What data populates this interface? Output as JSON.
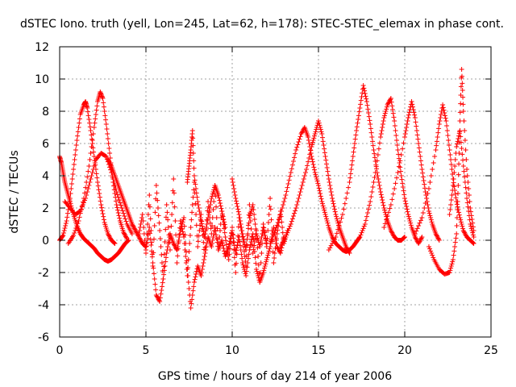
{
  "chart_data": {
    "type": "scatter",
    "title": "dSTEC Iono. truth (yell, Lon=245, Lat=62, h=178): STEC-STEC_elemax in phase cont.",
    "xlabel": "GPS time / hours of day 214 of year 2006",
    "ylabel": "dSTEC  / TECUs",
    "xlim": [
      0,
      25
    ],
    "ylim": [
      -6,
      12
    ],
    "x_ticks": [
      0,
      5,
      10,
      15,
      20,
      25
    ],
    "y_ticks": [
      -6,
      -4,
      -2,
      0,
      2,
      4,
      6,
      8,
      10,
      12
    ],
    "grid": true,
    "legend": "none",
    "marker": "plus",
    "color": "#ff0000",
    "series": [
      {
        "x": [
          0.0,
          0.1,
          0.2,
          0.3,
          0.45,
          0.6,
          0.8,
          1.0,
          1.2,
          1.4,
          1.6,
          1.8,
          2.0,
          2.2,
          2.4,
          2.6,
          2.8,
          3.0,
          3.2,
          3.4,
          3.6,
          3.8,
          4.0
        ],
        "y": [
          5.2,
          4.8,
          4.2,
          3.6,
          3.0,
          2.4,
          1.6,
          0.9,
          0.4,
          0.1,
          -0.1,
          -0.3,
          -0.5,
          -0.8,
          -1.0,
          -1.2,
          -1.3,
          -1.2,
          -1.0,
          -0.8,
          -0.5,
          -0.2,
          0.0
        ]
      },
      {
        "x": [
          0.0,
          0.2,
          0.4,
          0.6,
          0.8,
          1.0,
          1.2,
          1.4,
          1.5,
          1.6,
          1.8,
          2.0,
          2.2,
          2.4,
          2.6,
          2.8,
          3.0,
          3.2
        ],
        "y": [
          0.0,
          0.3,
          1.2,
          2.6,
          4.4,
          6.2,
          7.8,
          8.4,
          8.6,
          8.2,
          6.8,
          5.2,
          3.6,
          2.2,
          1.1,
          0.4,
          0.0,
          -0.2
        ]
      },
      {
        "x": [
          0.5,
          0.8,
          1.1,
          1.4,
          1.7,
          2.0,
          2.2,
          2.35,
          2.5,
          2.7,
          2.9,
          3.1,
          3.3,
          3.5,
          3.7,
          3.9
        ],
        "y": [
          -0.2,
          0.3,
          1.2,
          2.6,
          4.6,
          7.0,
          8.6,
          9.2,
          8.8,
          7.2,
          5.4,
          3.6,
          2.2,
          1.2,
          0.5,
          0.1
        ]
      },
      {
        "x": [
          0.3,
          0.6,
          0.9,
          1.2,
          1.5,
          1.8,
          2.1,
          2.4,
          2.7,
          3.0,
          3.3,
          3.6,
          3.9,
          4.2
        ],
        "y": [
          2.4,
          2.0,
          1.6,
          1.8,
          2.6,
          3.8,
          5.0,
          5.4,
          5.2,
          4.2,
          3.0,
          2.0,
          1.0,
          0.4
        ]
      },
      {
        "x": [
          2.8,
          3.0,
          3.2,
          3.4,
          3.6,
          3.8,
          4.0,
          4.2,
          4.4,
          4.6,
          4.8,
          5.0
        ],
        "y": [
          5.0,
          4.6,
          4.0,
          3.4,
          2.8,
          2.2,
          1.6,
          1.0,
          0.6,
          0.2,
          -0.2,
          -0.4
        ]
      },
      {
        "x": [
          4.6,
          4.8,
          5.0,
          5.2,
          5.4,
          5.6,
          5.8,
          6.0,
          6.2,
          6.4,
          6.6,
          6.8,
          7.0,
          7.2,
          7.4,
          7.6,
          7.8,
          8.0,
          8.2,
          8.4,
          8.6,
          8.8,
          9.0,
          9.2,
          9.4,
          9.6,
          9.8,
          10.0,
          10.2,
          10.4,
          10.6,
          10.8,
          11.0,
          11.2,
          11.4,
          11.6,
          11.8,
          12.0,
          12.2,
          12.4,
          12.6,
          12.8,
          13.0,
          13.2
        ],
        "y": [
          0.4,
          1.6,
          -0.8,
          2.8,
          -1.6,
          3.4,
          0.6,
          -2.4,
          2.2,
          -0.6,
          3.8,
          -1.4,
          1.2,
          0.2,
          -2.2,
          0.8,
          3.6,
          -0.4,
          1.6,
          -1.0,
          2.4,
          0.4,
          3.4,
          -0.6,
          1.8,
          0.2,
          -1.2,
          0.8,
          -2.0,
          1.4,
          0.2,
          -1.6,
          2.2,
          -0.8,
          0.6,
          -2.6,
          1.0,
          -0.4,
          2.6,
          -1.4,
          0.4,
          1.8,
          -0.2,
          0.6
        ]
      },
      {
        "x": [
          5.0,
          5.2,
          5.4,
          5.6,
          5.8,
          6.0,
          6.2,
          6.4,
          6.6,
          6.8,
          7.0,
          7.2,
          7.4,
          7.6,
          7.8,
          8.0,
          8.2,
          8.4,
          8.6,
          8.8,
          9.0,
          9.2,
          9.4,
          9.6,
          9.8,
          10.0,
          10.2,
          10.4,
          10.6,
          10.8,
          11.0,
          11.2,
          11.4,
          11.6,
          11.8,
          12.0,
          12.2,
          12.4,
          12.6,
          12.8,
          13.0
        ],
        "y": [
          -0.6,
          0.8,
          -1.4,
          -3.4,
          -3.8,
          -2.4,
          -0.8,
          0.4,
          -0.2,
          -0.6,
          0.6,
          1.4,
          -1.8,
          -4.2,
          -2.6,
          -1.6,
          -2.2,
          -1.0,
          0.2,
          -0.4,
          0.8,
          -0.6,
          0.0,
          -1.0,
          -0.4,
          0.6,
          -0.8,
          0.2,
          -1.4,
          -2.2,
          -0.6,
          0.4,
          -1.8,
          -2.6,
          -2.0,
          -1.2,
          -0.4,
          0.8,
          -0.4,
          -0.8,
          0.2
        ]
      },
      {
        "x": [
          7.4,
          7.5,
          7.6,
          7.7,
          7.8,
          8.0,
          8.2,
          8.4,
          8.6,
          8.8,
          9.0,
          9.2,
          9.4,
          9.6
        ],
        "y": [
          3.6,
          4.6,
          5.6,
          6.8,
          4.0,
          2.4,
          1.2,
          0.2,
          1.4,
          2.6,
          3.4,
          2.8,
          1.8,
          0.8
        ]
      },
      {
        "x": [
          10.0,
          10.2,
          10.4,
          10.6,
          10.8,
          11.0,
          11.2,
          11.4,
          11.6,
          11.8,
          12.0
        ],
        "y": [
          3.8,
          2.6,
          1.6,
          0.4,
          -0.6,
          1.4,
          2.2,
          0.4,
          -0.4,
          0.8,
          -0.2
        ]
      },
      {
        "x": [
          12.2,
          12.5,
          12.8,
          13.1,
          13.4,
          13.7,
          14.0,
          14.2,
          14.4,
          14.6,
          14.8,
          15.0,
          15.2,
          15.4,
          15.6,
          15.8,
          16.0,
          16.2,
          16.4,
          16.6,
          16.8,
          17.0,
          17.2,
          17.4
        ],
        "y": [
          -0.2,
          0.6,
          1.6,
          2.8,
          4.2,
          5.6,
          6.6,
          7.0,
          6.4,
          5.2,
          4.2,
          3.4,
          2.4,
          1.6,
          0.8,
          0.2,
          -0.2,
          -0.4,
          -0.6,
          -0.7,
          -0.6,
          -0.4,
          -0.1,
          0.2
        ]
      },
      {
        "x": [
          12.8,
          13.1,
          13.4,
          13.7,
          14.0,
          14.3,
          14.6,
          14.8,
          15.0,
          15.2,
          15.4,
          15.6,
          15.8,
          16.0,
          16.2,
          16.4,
          16.6,
          16.8
        ],
        "y": [
          -0.4,
          0.2,
          1.0,
          2.0,
          3.2,
          4.4,
          5.8,
          6.6,
          7.4,
          6.6,
          5.2,
          3.8,
          2.6,
          1.6,
          0.8,
          0.2,
          -0.4,
          -0.8
        ]
      },
      {
        "x": [
          15.6,
          16.0,
          16.4,
          16.8,
          17.0,
          17.2,
          17.4,
          17.6,
          17.8,
          18.0,
          18.2,
          18.4,
          18.6,
          18.8,
          19.0,
          19.2,
          19.4,
          19.6,
          19.8,
          20.0
        ],
        "y": [
          -0.6,
          0.2,
          1.6,
          3.6,
          5.2,
          6.8,
          8.2,
          9.6,
          8.6,
          7.2,
          5.6,
          4.2,
          3.0,
          2.0,
          1.2,
          0.6,
          0.2,
          0.0,
          0.0,
          0.2
        ]
      },
      {
        "x": [
          17.4,
          17.7,
          18.0,
          18.3,
          18.6,
          18.8,
          19.0,
          19.2,
          19.4,
          19.6,
          19.8,
          20.0,
          20.2,
          20.4,
          20.6,
          20.8,
          21.0
        ],
        "y": [
          0.2,
          1.0,
          2.4,
          4.2,
          6.4,
          7.6,
          8.4,
          8.8,
          7.4,
          5.6,
          4.0,
          2.6,
          1.6,
          0.8,
          0.2,
          -0.2,
          0.2
        ]
      },
      {
        "x": [
          18.8,
          19.2,
          19.6,
          20.0,
          20.2,
          20.4,
          20.6,
          20.8,
          21.0,
          21.2,
          21.4,
          21.6,
          21.8,
          22.0
        ],
        "y": [
          0.8,
          2.2,
          4.2,
          6.4,
          7.6,
          8.6,
          7.6,
          6.0,
          4.4,
          3.0,
          1.8,
          1.0,
          0.4,
          0.0
        ]
      },
      {
        "x": [
          20.6,
          21.0,
          21.4,
          21.8,
          22.0,
          22.2,
          22.4,
          22.6,
          22.8,
          23.0,
          23.2,
          23.4,
          23.6,
          23.8,
          24.0
        ],
        "y": [
          0.4,
          1.4,
          3.2,
          5.6,
          7.2,
          8.4,
          7.4,
          5.6,
          3.8,
          2.4,
          1.4,
          0.6,
          0.2,
          0.0,
          -0.2
        ]
      },
      {
        "x": [
          21.4,
          21.7,
          22.0,
          22.3,
          22.6,
          22.8,
          23.0,
          23.1,
          23.2,
          23.3,
          23.4,
          23.6,
          23.8,
          24.0
        ],
        "y": [
          -0.4,
          -1.2,
          -1.8,
          -2.1,
          -2.0,
          -1.2,
          0.4,
          3.4,
          7.4,
          10.6,
          8.0,
          4.4,
          2.0,
          0.6
        ]
      },
      {
        "x": [
          22.6,
          22.8,
          23.0,
          23.2,
          23.4,
          23.6,
          23.8,
          24.0
        ],
        "y": [
          1.6,
          3.4,
          5.8,
          6.8,
          4.6,
          2.6,
          1.0,
          0.2
        ]
      }
    ]
  }
}
